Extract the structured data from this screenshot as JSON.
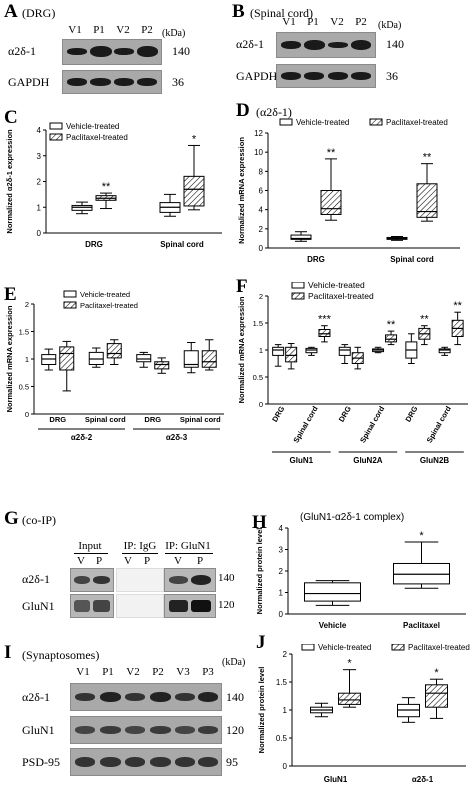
{
  "panelA": {
    "letter": "A",
    "title": "(DRG)",
    "lanes": [
      "V1",
      "P1",
      "V2",
      "P2"
    ],
    "kda": "(kDa)",
    "rows": [
      {
        "label": "α2δ-1",
        "mw": "140"
      },
      {
        "label": "GAPDH",
        "mw": "36"
      }
    ]
  },
  "panelB": {
    "letter": "B",
    "title": "(Spinal cord)",
    "lanes": [
      "V1",
      "P1",
      "V2",
      "P2"
    ],
    "kda": "(kDa)",
    "rows": [
      {
        "label": "α2δ-1",
        "mw": "140"
      },
      {
        "label": "GAPDH",
        "mw": "36"
      }
    ]
  },
  "panelC": {
    "letter": "C"
  },
  "panelD": {
    "letter": "D",
    "title": "(α2δ-1)"
  },
  "panelE": {
    "letter": "E"
  },
  "panelF": {
    "letter": "F"
  },
  "panelG": {
    "letter": "G",
    "title": "(co-IP)",
    "groups": [
      "Input",
      "IP: IgG",
      "IP: GluN1"
    ],
    "lanes": [
      "V",
      "P",
      "V",
      "P",
      "V",
      "P"
    ],
    "rows": [
      {
        "label": "α2δ-1",
        "mw": "140"
      },
      {
        "label": "GluN1",
        "mw": "120"
      }
    ]
  },
  "panelH": {
    "letter": "H",
    "title": "(GluN1-α2δ-1 complex)"
  },
  "panelI": {
    "letter": "I",
    "title": "(Synaptosomes)",
    "lanes": [
      "V1",
      "P1",
      "V2",
      "P2",
      "V3",
      "P3"
    ],
    "kda": "(kDa)",
    "rows": [
      {
        "label": "α2δ-1",
        "mw": "140"
      },
      {
        "label": "GluN1",
        "mw": "120"
      },
      {
        "label": "PSD-95",
        "mw": "95"
      }
    ]
  },
  "panelJ": {
    "letter": "J"
  },
  "chart_data": [
    {
      "id": "C",
      "type": "box",
      "ylabel": "Normalized α2δ-1 expression",
      "ylim": [
        0,
        4
      ],
      "yticks": [
        0,
        1,
        2,
        3,
        4
      ],
      "categories": [
        "DRG",
        "Spinal cord"
      ],
      "legend": [
        "Vehicle-treated",
        "Paclitaxel-treated"
      ],
      "boxes": [
        {
          "cat": 0,
          "series": 0,
          "min": 0.75,
          "q1": 0.88,
          "median": 1.0,
          "q3": 1.07,
          "max": 1.2
        },
        {
          "cat": 0,
          "series": 1,
          "min": 0.95,
          "q1": 1.27,
          "median": 1.35,
          "q3": 1.45,
          "max": 1.55,
          "sig": "**"
        },
        {
          "cat": 1,
          "series": 0,
          "min": 0.65,
          "q1": 0.8,
          "median": 1.0,
          "q3": 1.18,
          "max": 1.5
        },
        {
          "cat": 1,
          "series": 1,
          "min": 0.9,
          "q1": 1.05,
          "median": 1.7,
          "q3": 2.2,
          "max": 3.4,
          "sig": "*"
        }
      ]
    },
    {
      "id": "D",
      "type": "box",
      "ylabel": "Normalized mRNA expression",
      "ylim": [
        0,
        12
      ],
      "yticks": [
        0,
        2,
        4,
        6,
        8,
        10,
        12
      ],
      "categories": [
        "DRG",
        "Spinal cord"
      ],
      "legend": [
        "Vehicle-treated",
        "Paclitaxel-treated"
      ],
      "boxes": [
        {
          "cat": 0,
          "series": 0,
          "min": 0.7,
          "q1": 0.9,
          "median": 1.0,
          "q3": 1.35,
          "max": 1.7
        },
        {
          "cat": 0,
          "series": 1,
          "min": 2.9,
          "q1": 3.5,
          "median": 4.1,
          "q3": 6.0,
          "max": 9.3,
          "sig": "**"
        },
        {
          "cat": 1,
          "series": 0,
          "min": 0.8,
          "q1": 0.9,
          "median": 1.0,
          "q3": 1.1,
          "max": 1.2
        },
        {
          "cat": 1,
          "series": 1,
          "min": 2.8,
          "q1": 3.2,
          "median": 3.8,
          "q3": 6.7,
          "max": 8.8,
          "sig": "**"
        }
      ]
    },
    {
      "id": "E",
      "type": "box",
      "ylabel": "Normalized mRNA expression",
      "ylim": [
        0,
        2.0
      ],
      "yticks": [
        0,
        0.5,
        1.0,
        1.5,
        2.0
      ],
      "categories": [
        "DRG",
        "Spinal cord",
        "DRG",
        "Spinal cord"
      ],
      "groups": [
        "α2δ-2",
        "α2δ-3"
      ],
      "legend": [
        "Vehicle-treated",
        "Paclitaxel-treated"
      ],
      "boxes": [
        {
          "cat": 0,
          "series": 0,
          "min": 0.8,
          "q1": 0.9,
          "median": 1.0,
          "q3": 1.08,
          "max": 1.18
        },
        {
          "cat": 0,
          "series": 1,
          "min": 0.42,
          "q1": 0.8,
          "median": 1.1,
          "q3": 1.22,
          "max": 1.32
        },
        {
          "cat": 1,
          "series": 0,
          "min": 0.85,
          "q1": 0.9,
          "median": 1.0,
          "q3": 1.12,
          "max": 1.2
        },
        {
          "cat": 1,
          "series": 1,
          "min": 0.9,
          "q1": 1.02,
          "median": 1.1,
          "q3": 1.28,
          "max": 1.35
        },
        {
          "cat": 2,
          "series": 0,
          "min": 0.85,
          "q1": 0.95,
          "median": 1.0,
          "q3": 1.08,
          "max": 1.12
        },
        {
          "cat": 2,
          "series": 1,
          "min": 0.74,
          "q1": 0.82,
          "median": 0.9,
          "q3": 0.95,
          "max": 1.02
        },
        {
          "cat": 3,
          "series": 0,
          "min": 0.75,
          "q1": 0.85,
          "median": 0.9,
          "q3": 1.15,
          "max": 1.3
        },
        {
          "cat": 3,
          "series": 1,
          "min": 0.8,
          "q1": 0.85,
          "median": 0.95,
          "q3": 1.15,
          "max": 1.35
        }
      ]
    },
    {
      "id": "F",
      "type": "box",
      "ylabel": "Normalized mRNA expression",
      "ylim": [
        0,
        2.0
      ],
      "yticks": [
        0,
        0.5,
        1.0,
        1.5,
        2.0
      ],
      "categories": [
        "DRG",
        "Spinal cord",
        "DRG",
        "Spinal cord",
        "DRG",
        "Spinal cord"
      ],
      "groups": [
        "GluN1",
        "GluN2A",
        "GluN2B"
      ],
      "legend": [
        "Vehicle-treated",
        "Paclitaxel-treated"
      ],
      "boxes": [
        {
          "cat": 0,
          "series": 0,
          "min": 0.7,
          "q1": 0.9,
          "median": 1.0,
          "q3": 1.05,
          "max": 1.1
        },
        {
          "cat": 0,
          "series": 1,
          "min": 0.65,
          "q1": 0.78,
          "median": 0.9,
          "q3": 1.05,
          "max": 1.12
        },
        {
          "cat": 1,
          "series": 0,
          "min": 0.9,
          "q1": 0.95,
          "median": 1.0,
          "q3": 1.03,
          "max": 1.05
        },
        {
          "cat": 1,
          "series": 1,
          "min": 1.15,
          "q1": 1.25,
          "median": 1.3,
          "q3": 1.38,
          "max": 1.45,
          "sig": "***"
        },
        {
          "cat": 2,
          "series": 0,
          "min": 0.75,
          "q1": 0.9,
          "median": 1.0,
          "q3": 1.05,
          "max": 1.1
        },
        {
          "cat": 2,
          "series": 1,
          "min": 0.65,
          "q1": 0.75,
          "median": 0.85,
          "q3": 0.95,
          "max": 1.05
        },
        {
          "cat": 3,
          "series": 0,
          "min": 0.95,
          "q1": 0.97,
          "median": 1.0,
          "q3": 1.02,
          "max": 1.05
        },
        {
          "cat": 3,
          "series": 1,
          "min": 1.1,
          "q1": 1.15,
          "median": 1.2,
          "q3": 1.28,
          "max": 1.35,
          "sig": "**"
        },
        {
          "cat": 4,
          "series": 0,
          "min": 0.75,
          "q1": 0.85,
          "median": 1.0,
          "q3": 1.15,
          "max": 1.3
        },
        {
          "cat": 4,
          "series": 1,
          "min": 1.1,
          "q1": 1.2,
          "median": 1.3,
          "q3": 1.4,
          "max": 1.45,
          "sig": "**"
        },
        {
          "cat": 5,
          "series": 0,
          "min": 0.9,
          "q1": 0.95,
          "median": 1.0,
          "q3": 1.02,
          "max": 1.05
        },
        {
          "cat": 5,
          "series": 1,
          "min": 1.1,
          "q1": 1.25,
          "median": 1.4,
          "q3": 1.55,
          "max": 1.7,
          "sig": "**"
        }
      ]
    },
    {
      "id": "H",
      "type": "box",
      "ylabel": "Normalized protein level",
      "ylim": [
        0,
        4
      ],
      "yticks": [
        0,
        1,
        2,
        3,
        4
      ],
      "categories": [
        "Vehicle",
        "Paclitaxel"
      ],
      "boxes": [
        {
          "cat": 0,
          "series": 0,
          "min": 0.4,
          "q1": 0.6,
          "median": 0.95,
          "q3": 1.45,
          "max": 1.55
        },
        {
          "cat": 1,
          "series": 0,
          "min": 1.2,
          "q1": 1.4,
          "median": 1.85,
          "q3": 2.35,
          "max": 3.35,
          "sig": "*"
        }
      ]
    },
    {
      "id": "J",
      "type": "box",
      "ylabel": "Normalized protein level",
      "ylim": [
        0,
        2.0
      ],
      "yticks": [
        0,
        0.5,
        1.0,
        1.5,
        2.0
      ],
      "categories": [
        "GluN1",
        "α2δ-1"
      ],
      "legend": [
        "Vehicle-treated",
        "Paclitaxel-treated"
      ],
      "boxes": [
        {
          "cat": 0,
          "series": 0,
          "min": 0.88,
          "q1": 0.95,
          "median": 1.0,
          "q3": 1.05,
          "max": 1.12
        },
        {
          "cat": 0,
          "series": 1,
          "min": 1.05,
          "q1": 1.1,
          "median": 1.18,
          "q3": 1.3,
          "max": 1.72,
          "sig": "*"
        },
        {
          "cat": 1,
          "series": 0,
          "min": 0.78,
          "q1": 0.88,
          "median": 1.0,
          "q3": 1.1,
          "max": 1.22
        },
        {
          "cat": 1,
          "series": 1,
          "min": 0.85,
          "q1": 1.05,
          "median": 1.3,
          "q3": 1.45,
          "max": 1.55,
          "sig": "*"
        }
      ]
    }
  ]
}
